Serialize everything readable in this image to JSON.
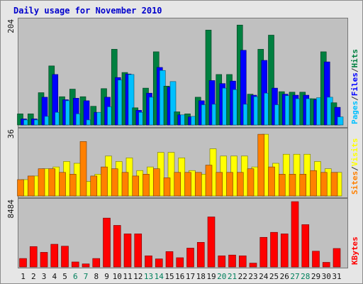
{
  "title": "Daily usage for November 2010",
  "colors": {
    "hits": "#008040",
    "files": "#0000ff",
    "pages": "#00c0ff",
    "visits": "#ffff00",
    "sites": "#ff8000",
    "kbytes": "#ff0000",
    "weekday_label": "#111111",
    "weekend_label": "#00805c"
  },
  "chart_data": [
    {
      "type": "bar",
      "panel": "top",
      "ymax_label": "204",
      "ylim": [
        0,
        204
      ],
      "side_labels": [
        "Pages",
        "Files",
        "Hits"
      ],
      "categories": [
        "1",
        "2",
        "3",
        "4",
        "5",
        "6",
        "7",
        "8",
        "9",
        "10",
        "11",
        "12",
        "13",
        "14",
        "15",
        "16",
        "17",
        "18",
        "19",
        "20",
        "21",
        "22",
        "23",
        "24",
        "25",
        "26",
        "27",
        "28",
        "29",
        "30",
        "31"
      ],
      "weekend_days": [
        "6",
        "7",
        "13",
        "14",
        "20",
        "21",
        "27",
        "28"
      ],
      "series": [
        {
          "name": "Hits",
          "values": [
            22,
            22,
            64,
            117,
            56,
            71,
            56,
            37,
            72,
            150,
            104,
            34,
            73,
            145,
            77,
            26,
            22,
            55,
            188,
            100,
            100,
            198,
            61,
            150,
            178,
            66,
            65,
            65,
            52,
            145,
            44
          ]
        },
        {
          "name": "Files",
          "values": [
            12,
            12,
            55,
            100,
            50,
            53,
            48,
            25,
            55,
            94,
            101,
            29,
            63,
            114,
            75,
            20,
            16,
            48,
            88,
            82,
            87,
            148,
            59,
            128,
            73,
            61,
            59,
            59,
            50,
            125,
            35
          ]
        },
        {
          "name": "Pages",
          "values": [
            10,
            10,
            17,
            25,
            48,
            22,
            10,
            25,
            36,
            89,
            100,
            25,
            55,
            108,
            86,
            20,
            17,
            40,
            41,
            73,
            70,
            41,
            56,
            63,
            40,
            58,
            52,
            52,
            54,
            55,
            16
          ]
        }
      ]
    },
    {
      "type": "bar",
      "panel": "middle",
      "ymax_label": "36",
      "ylim": [
        0,
        36
      ],
      "side_labels": [
        "Sites",
        "Visits"
      ],
      "categories": [
        "1",
        "2",
        "3",
        "4",
        "5",
        "6",
        "7",
        "8",
        "9",
        "10",
        "11",
        "12",
        "13",
        "14",
        "15",
        "16",
        "17",
        "18",
        "19",
        "20",
        "21",
        "22",
        "23",
        "24",
        "25",
        "26",
        "27",
        "28",
        "29",
        "30",
        "31"
      ],
      "series": [
        {
          "name": "Visits",
          "values": [
            9,
            11,
            15,
            16,
            19,
            18,
            8,
            12,
            22,
            19,
            21,
            14,
            16,
            24,
            24,
            21,
            14,
            12,
            26,
            22,
            22,
            22,
            16,
            34,
            18,
            23,
            23,
            23,
            19,
            15,
            13
          ]
        },
        {
          "name": "Sites",
          "values": [
            9,
            11,
            15,
            15,
            13,
            12,
            30,
            11,
            16,
            15,
            13,
            11,
            12,
            15,
            10,
            13,
            13,
            13,
            17,
            13,
            13,
            13,
            15,
            34,
            16,
            12,
            12,
            12,
            14,
            13,
            13
          ]
        }
      ]
    },
    {
      "type": "bar",
      "panel": "bottom",
      "ymax_label": "8484",
      "ylim": [
        0,
        8484
      ],
      "side_labels": [
        "KBytes"
      ],
      "categories": [
        "1",
        "2",
        "3",
        "4",
        "5",
        "6",
        "7",
        "8",
        "9",
        "10",
        "11",
        "12",
        "13",
        "14",
        "15",
        "16",
        "17",
        "18",
        "19",
        "20",
        "21",
        "22",
        "23",
        "24",
        "25",
        "26",
        "27",
        "28",
        "29",
        "30",
        "31"
      ],
      "series": [
        {
          "name": "KBytes",
          "values": [
            1100,
            2650,
            1900,
            2950,
            2700,
            650,
            400,
            1100,
            6350,
            5400,
            4300,
            4300,
            1450,
            1050,
            2000,
            1200,
            2450,
            3200,
            6500,
            1450,
            1550,
            1450,
            500,
            3850,
            4500,
            4300,
            8484,
            5500,
            2050,
            600,
            2400
          ]
        }
      ]
    }
  ]
}
